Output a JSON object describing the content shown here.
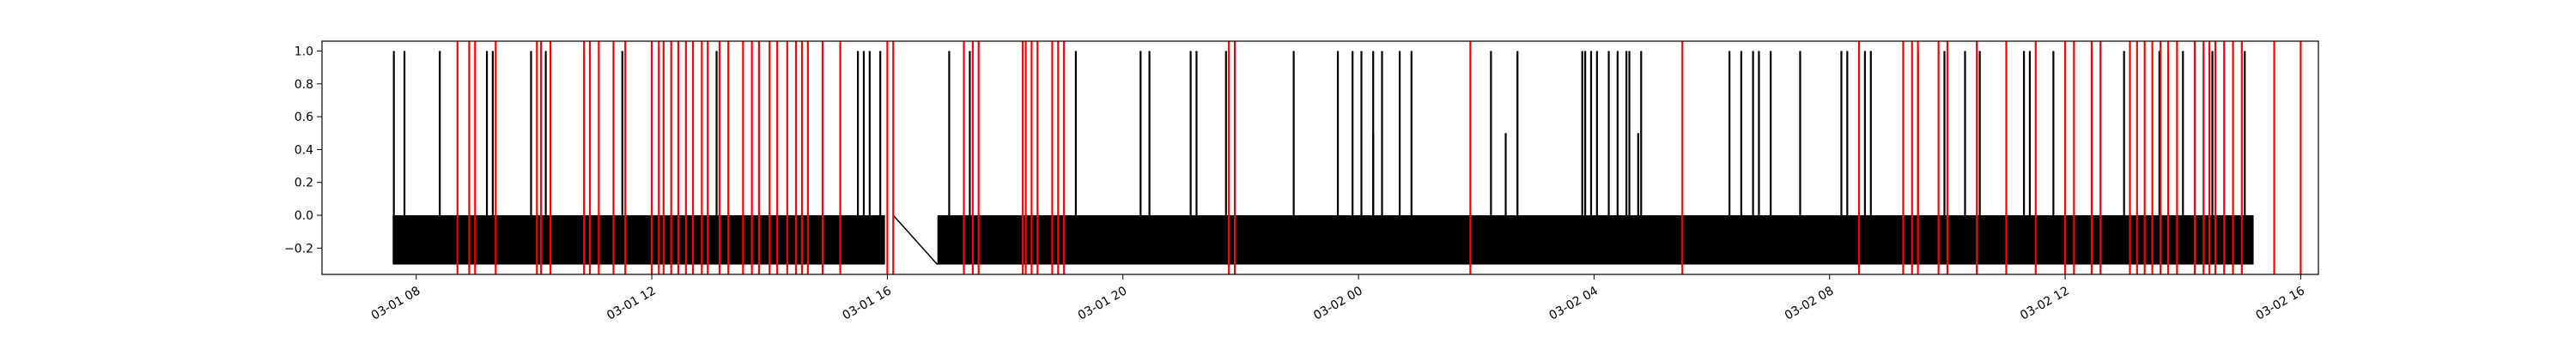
{
  "chart_data": {
    "type": "line",
    "title": "",
    "xlabel": "",
    "ylabel": "",
    "grid": false,
    "legend": "none",
    "xlim": [
      6.4,
      40.3
    ],
    "ylim": [
      -0.36,
      1.06
    ],
    "x_unit": "hours since 03-01 00:00",
    "x_ticks": [
      {
        "x": 8,
        "label": "03-01 08"
      },
      {
        "x": 12,
        "label": "03-01 12"
      },
      {
        "x": 16,
        "label": "03-01 16"
      },
      {
        "x": 20,
        "label": "03-01 20"
      },
      {
        "x": 24,
        "label": "03-02 00"
      },
      {
        "x": 28,
        "label": "03-02 04"
      },
      {
        "x": 32,
        "label": "03-02 08"
      },
      {
        "x": 36,
        "label": "03-02 12"
      },
      {
        "x": 40,
        "label": "03-02 16"
      }
    ],
    "y_ticks": [
      {
        "y": 1.0,
        "label": "1.0"
      },
      {
        "y": 0.8,
        "label": "0.8"
      },
      {
        "y": 0.6,
        "label": "0.6"
      },
      {
        "y": 0.4,
        "label": "0.4"
      },
      {
        "y": 0.2,
        "label": "0.2"
      },
      {
        "y": 0.0,
        "label": "0.0"
      },
      {
        "y": -0.2,
        "label": "−0.2"
      }
    ],
    "series": [
      {
        "color": "#000000",
        "baseline_min": -0.3,
        "baseline_max": 0.0,
        "band_segments": [
          [
            7.6,
            15.96
          ],
          [
            16.85,
            39.2
          ]
        ],
        "transition_line": [
          [
            16.1,
            0.0
          ],
          [
            16.85,
            -0.3
          ]
        ],
        "spikes_to_1": [
          7.62,
          7.8,
          8.4,
          9.2,
          9.3,
          9.95,
          10.2,
          11.5,
          13.1,
          15.5,
          15.6,
          15.7,
          15.88,
          17.05,
          17.4,
          19.2,
          20.3,
          20.45,
          21.15,
          21.25,
          21.75,
          22.9,
          23.65,
          23.9,
          24.05,
          24.25,
          24.4,
          24.7,
          24.9,
          26.25,
          26.7,
          27.8,
          27.85,
          27.95,
          28.05,
          28.25,
          28.4,
          28.55,
          28.6,
          28.8,
          30.3,
          30.5,
          30.7,
          30.8,
          31.0,
          31.5,
          32.2,
          32.3,
          32.6,
          32.7,
          33.5,
          33.95,
          34.3,
          34.55,
          35.3,
          35.4,
          35.8,
          37.0,
          37.6,
          37.75,
          38.0,
          38.5,
          39.05
        ],
        "spikes_partial": [
          {
            "x": 24.25,
            "y": 0.5
          },
          {
            "x": 26.5,
            "y": 0.5
          },
          {
            "x": 28.75,
            "y": 0.5
          }
        ]
      },
      {
        "color": "#ff0000",
        "type": "vertical_lines",
        "x": [
          8.7,
          8.9,
          9.0,
          9.35,
          10.05,
          10.12,
          10.28,
          10.85,
          10.95,
          11.1,
          11.35,
          11.55,
          12.0,
          12.12,
          12.2,
          12.33,
          12.45,
          12.58,
          12.7,
          12.85,
          12.95,
          13.15,
          13.3,
          13.55,
          13.7,
          13.82,
          14.0,
          14.13,
          14.3,
          14.45,
          14.55,
          14.65,
          14.9,
          15.2,
          16.0,
          16.1,
          17.3,
          17.45,
          17.55,
          18.3,
          18.35,
          18.45,
          18.55,
          18.8,
          18.9,
          19.0,
          21.8,
          21.9,
          25.9,
          29.5,
          32.5,
          33.25,
          33.4,
          33.5,
          33.85,
          34.0,
          34.5,
          35.0,
          35.5,
          36.0,
          36.15,
          36.45,
          36.6,
          37.1,
          37.22,
          37.35,
          37.48,
          37.62,
          37.75,
          37.9,
          38.2,
          38.35,
          38.45,
          38.55,
          38.7,
          38.85,
          39.0,
          39.55,
          40.0
        ]
      }
    ]
  }
}
